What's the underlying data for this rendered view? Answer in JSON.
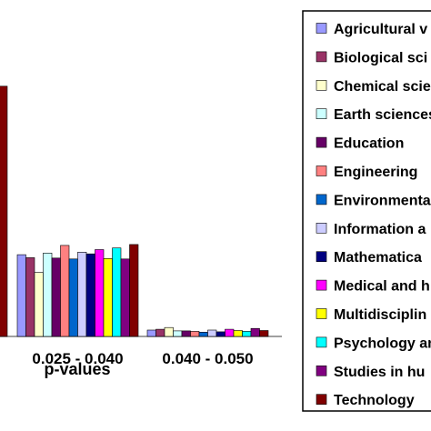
{
  "chart_data": {
    "type": "bar",
    "xlabel": "p-values",
    "categories": [
      "",
      "0.025 - 0.040",
      "0.040 - 0.050"
    ],
    "ylim": [
      0,
      0.35
    ],
    "grid": false,
    "legend_position": "right",
    "series": [
      {
        "name": "Agricultural v",
        "color": "#9999ff",
        "values": [
          null,
          0.0965,
          0.0075
        ]
      },
      {
        "name": "Biological sci",
        "color": "#993366",
        "values": [
          null,
          0.093,
          0.0085
        ]
      },
      {
        "name": "Chemical scie",
        "color": "#ffffcc",
        "values": [
          null,
          0.0755,
          0.0105
        ]
      },
      {
        "name": "Earth sciences",
        "color": "#ccffff",
        "values": [
          null,
          0.0985,
          0.0065
        ]
      },
      {
        "name": "Education",
        "color": "#660066",
        "values": [
          null,
          0.0925,
          0.0065
        ]
      },
      {
        "name": "Engineering",
        "color": "#ff8080",
        "values": [
          null,
          0.1075,
          0.006
        ]
      },
      {
        "name": "Environmenta",
        "color": "#0066cc",
        "values": [
          null,
          0.0915,
          0.005
        ]
      },
      {
        "name": "Information a",
        "color": "#ccccff",
        "values": [
          null,
          0.0995,
          0.0075
        ]
      },
      {
        "name": "Mathematica",
        "color": "#000080",
        "values": [
          null,
          0.0975,
          0.0055
        ]
      },
      {
        "name": "Medical and h",
        "color": "#ff00ff",
        "values": [
          null,
          0.1025,
          0.0085
        ]
      },
      {
        "name": "Multidisciplin",
        "color": "#ffff00",
        "values": [
          null,
          0.092,
          0.007
        ]
      },
      {
        "name": "Psychology an",
        "color": "#00ffff",
        "values": [
          null,
          0.1045,
          0.006
        ]
      },
      {
        "name": "Studies in hu",
        "color": "#800080",
        "values": [
          null,
          0.0915,
          0.0095
        ]
      },
      {
        "name": "Technology",
        "color": "#800000",
        "values": [
          0.2955,
          0.1085,
          0.007
        ]
      }
    ]
  }
}
